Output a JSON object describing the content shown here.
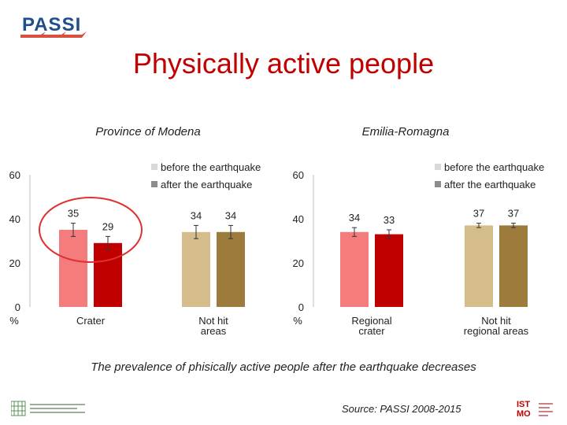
{
  "header": {
    "logo_text": "PASSI",
    "title": "Physically active people"
  },
  "footer": {
    "caption": "The prevalence of phisically active people after the earthquake decreases",
    "source": "Source: PASSI 2008-2015",
    "right_logo_text": "ISTMO"
  },
  "colors": {
    "title": "#c00000",
    "before_light": "#f47c7c",
    "after_dark": "#c00000",
    "before_tan": "#d4bd8a",
    "after_brown": "#9c7b3c",
    "legend_before": "#d9d9d9",
    "legend_after": "#8c8c8c",
    "highlight_circle": "#e03030"
  },
  "chart_data": [
    {
      "type": "bar",
      "title": "Province of Modena",
      "categories": [
        "Crater",
        "Not hit areas"
      ],
      "category_lines": [
        [
          "Crater"
        ],
        [
          "Not hit",
          "areas"
        ]
      ],
      "series": [
        {
          "name": "before the earthquake",
          "values": [
            35,
            34
          ]
        },
        {
          "name": "after the earthquake",
          "values": [
            29,
            34
          ]
        }
      ],
      "error_bars": [
        [
          3,
          3
        ],
        [
          3,
          3
        ]
      ],
      "value_labels": [
        [
          "35",
          "34"
        ],
        [
          "29",
          "34"
        ]
      ],
      "yticks": [
        "0",
        "20",
        "40",
        "60"
      ],
      "ylabel": "%",
      "ylim": [
        0,
        60
      ],
      "legend_position": "top-right"
    },
    {
      "type": "bar",
      "title": "Emilia-Romagna",
      "categories": [
        "Regional crater",
        "Not hit regional areas"
      ],
      "category_lines": [
        [
          "Regional",
          "crater"
        ],
        [
          "Not hit",
          "regional areas"
        ]
      ],
      "series": [
        {
          "name": "before the earthquake",
          "values": [
            34,
            37
          ]
        },
        {
          "name": "after the earthquake",
          "values": [
            33,
            37
          ]
        }
      ],
      "error_bars": [
        [
          2,
          1
        ],
        [
          2,
          1
        ]
      ],
      "value_labels": [
        [
          "34",
          "37"
        ],
        [
          "33",
          "37"
        ]
      ],
      "yticks": [
        "0",
        "20",
        "40",
        "60"
      ],
      "ylabel": "%",
      "ylim": [
        0,
        60
      ],
      "legend_position": "top-right"
    }
  ]
}
